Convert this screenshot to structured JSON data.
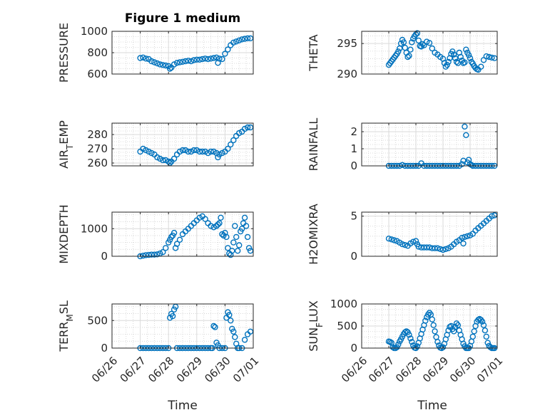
{
  "figure": {
    "title": "Figure 1 medium",
    "xlabel": "Time",
    "marker_color": "#0072BD",
    "x_tick_labels": [
      "06/26",
      "06/27",
      "06/28",
      "06/29",
      "06/30",
      "07/01"
    ]
  },
  "chart_data": [
    {
      "type": "scatter",
      "ylabel": "PRESSURE",
      "xlim": [
        "06/26",
        "07/01"
      ],
      "ylim": [
        600,
        1000
      ],
      "yticks": [
        600,
        800,
        1000
      ],
      "ytick_labels": [
        "600",
        "800",
        "1000"
      ],
      "grid": true,
      "x": [
        27.0,
        27.1,
        27.2,
        27.3,
        27.4,
        27.5,
        27.6,
        27.7,
        27.8,
        27.9,
        28.0,
        28.05,
        28.1,
        28.2,
        28.3,
        28.4,
        28.5,
        28.6,
        28.7,
        28.8,
        28.9,
        29.0,
        29.1,
        29.2,
        29.3,
        29.4,
        29.5,
        29.6,
        29.7,
        29.75,
        29.8,
        29.9,
        30.0,
        30.1,
        30.2,
        30.3,
        30.4,
        30.5,
        30.6,
        30.7,
        30.8,
        30.9
      ],
      "y": [
        750,
        755,
        745,
        740,
        720,
        710,
        700,
        690,
        685,
        680,
        675,
        650,
        660,
        690,
        705,
        710,
        715,
        720,
        725,
        720,
        730,
        735,
        735,
        740,
        745,
        740,
        745,
        750,
        755,
        705,
        745,
        740,
        790,
        830,
        870,
        895,
        905,
        915,
        925,
        930,
        935,
        935
      ]
    },
    {
      "type": "scatter",
      "ylabel": "THETA",
      "xlim": [
        "06/26",
        "07/01"
      ],
      "ylim": [
        290,
        297
      ],
      "yticks": [
        290,
        295
      ],
      "ytick_labels": [
        "290",
        "295"
      ],
      "grid": true,
      "x": [
        27.0,
        27.05,
        27.1,
        27.15,
        27.2,
        27.25,
        27.3,
        27.35,
        27.4,
        27.45,
        27.5,
        27.55,
        27.6,
        27.65,
        27.7,
        27.75,
        27.8,
        27.85,
        27.9,
        27.95,
        28.0,
        28.05,
        28.1,
        28.15,
        28.2,
        28.25,
        28.3,
        28.4,
        28.5,
        28.6,
        28.7,
        28.8,
        28.9,
        29.0,
        29.05,
        29.1,
        29.15,
        29.2,
        29.25,
        29.3,
        29.35,
        29.4,
        29.45,
        29.5,
        29.55,
        29.6,
        29.65,
        29.7,
        29.75,
        29.8,
        29.85,
        29.9,
        29.95,
        30.0,
        30.05,
        30.1,
        30.15,
        30.2,
        30.25,
        30.3,
        30.4,
        30.5,
        30.6,
        30.7,
        30.8,
        30.9
      ],
      "y": [
        291.5,
        291.8,
        292.1,
        292.4,
        292.7,
        293.0,
        293.3,
        293.7,
        294.2,
        295.0,
        295.6,
        295.2,
        294.3,
        293.5,
        292.8,
        293.0,
        294.0,
        295.2,
        295.8,
        296.2,
        296.5,
        296.7,
        295.5,
        294.6,
        294.5,
        294.9,
        294.7,
        295.3,
        295.1,
        294.2,
        293.5,
        293.2,
        292.8,
        292.5,
        291.8,
        291.2,
        291.5,
        292.0,
        292.6,
        293.3,
        293.7,
        293.2,
        292.6,
        292.0,
        291.8,
        293.5,
        292.8,
        292.2,
        291.8,
        291.9,
        294.0,
        293.5,
        293.1,
        292.6,
        292.0,
        291.7,
        291.3,
        291.0,
        290.8,
        290.7,
        291.2,
        292.3,
        292.9,
        292.8,
        292.7,
        292.6
      ]
    },
    {
      "type": "scatter",
      "ylabel": "AIR_TEMP",
      "xlim": [
        "06/26",
        "07/01"
      ],
      "ylim": [
        258,
        288
      ],
      "yticks": [
        260,
        270,
        280
      ],
      "ytick_labels": [
        "260",
        "270",
        "280"
      ],
      "grid": true,
      "x": [
        27.0,
        27.1,
        27.2,
        27.3,
        27.4,
        27.5,
        27.6,
        27.7,
        27.8,
        27.9,
        28.0,
        28.05,
        28.1,
        28.2,
        28.3,
        28.4,
        28.5,
        28.6,
        28.7,
        28.8,
        28.9,
        29.0,
        29.1,
        29.2,
        29.3,
        29.4,
        29.5,
        29.6,
        29.7,
        29.75,
        29.8,
        29.9,
        30.0,
        30.1,
        30.2,
        30.3,
        30.4,
        30.5,
        30.6,
        30.7,
        30.8,
        30.9
      ],
      "y": [
        268,
        270,
        269,
        268,
        267,
        266,
        264,
        263,
        262,
        262,
        261,
        260,
        261,
        263,
        266,
        268,
        269,
        269,
        268,
        268,
        269,
        269,
        268,
        268,
        268,
        267,
        268,
        268,
        267,
        264,
        266,
        267,
        268,
        270,
        273,
        276,
        279,
        281,
        282,
        284,
        285,
        285
      ]
    },
    {
      "type": "scatter",
      "ylabel": "RAINFALL",
      "xlim": [
        "06/26",
        "07/01"
      ],
      "ylim": [
        0,
        2.5
      ],
      "yticks": [
        0,
        1,
        2
      ],
      "ytick_labels": [
        "0",
        "1",
        "2"
      ],
      "grid": true,
      "x": [
        27.0,
        27.1,
        27.2,
        27.3,
        27.4,
        27.5,
        27.6,
        27.7,
        27.8,
        27.9,
        28.0,
        28.1,
        28.2,
        28.3,
        28.4,
        28.5,
        28.6,
        28.7,
        28.8,
        28.9,
        29.0,
        29.1,
        29.2,
        29.3,
        29.4,
        29.5,
        29.6,
        29.7,
        29.75,
        29.8,
        29.85,
        29.9,
        29.95,
        30.0,
        30.05,
        30.1,
        30.2,
        30.3,
        30.4,
        30.5,
        30.6,
        30.7,
        30.8,
        30.9
      ],
      "y": [
        0,
        0,
        0,
        0,
        0,
        0.05,
        0,
        0,
        0,
        0,
        0,
        0,
        0.15,
        0,
        0,
        0,
        0,
        0,
        0,
        0,
        0,
        0,
        0,
        0,
        0,
        0,
        0,
        0.1,
        0.3,
        2.3,
        1.8,
        0.2,
        0.35,
        0.1,
        0.05,
        0,
        0,
        0,
        0,
        0,
        0,
        0,
        0,
        0
      ]
    },
    {
      "type": "scatter",
      "ylabel": "MIXDEPTH",
      "xlim": [
        "06/26",
        "07/01"
      ],
      "ylim": [
        0,
        1600
      ],
      "yticks": [
        0,
        1000
      ],
      "ytick_labels": [
        "0",
        "1000"
      ],
      "grid": true,
      "x": [
        27.0,
        27.1,
        27.2,
        27.3,
        27.4,
        27.5,
        27.6,
        27.7,
        27.8,
        27.9,
        28.0,
        28.05,
        28.1,
        28.15,
        28.2,
        28.25,
        28.3,
        28.4,
        28.5,
        28.6,
        28.7,
        28.8,
        28.9,
        29.0,
        29.1,
        29.2,
        29.3,
        29.4,
        29.5,
        29.6,
        29.7,
        29.75,
        29.8,
        29.85,
        29.9,
        29.95,
        30.0,
        30.05,
        30.1,
        30.15,
        30.2,
        30.25,
        30.3,
        30.35,
        30.4,
        30.45,
        30.5,
        30.55,
        30.6,
        30.65,
        30.7,
        30.75,
        30.8,
        30.85,
        30.9
      ],
      "y": [
        0,
        20,
        40,
        50,
        60,
        60,
        70,
        100,
        150,
        300,
        500,
        600,
        700,
        750,
        850,
        300,
        450,
        600,
        800,
        900,
        1000,
        1100,
        1200,
        1300,
        1400,
        1450,
        1350,
        1200,
        1100,
        1050,
        1100,
        1150,
        1200,
        1400,
        800,
        750,
        850,
        700,
        300,
        100,
        50,
        200,
        500,
        1100,
        700,
        200,
        400,
        900,
        1000,
        1200,
        1400,
        1100,
        700,
        300,
        200
      ]
    },
    {
      "type": "scatter",
      "ylabel": "H2OMIXRA",
      "xlim": [
        "06/26",
        "07/01"
      ],
      "ylim": [
        0,
        5.5
      ],
      "yticks": [
        0,
        5
      ],
      "ytick_labels": [
        "0",
        "5"
      ],
      "grid": true,
      "x": [
        27.0,
        27.1,
        27.2,
        27.3,
        27.4,
        27.5,
        27.6,
        27.7,
        27.8,
        27.9,
        28.0,
        28.05,
        28.1,
        28.2,
        28.3,
        28.4,
        28.5,
        28.6,
        28.7,
        28.8,
        28.9,
        29.0,
        29.1,
        29.2,
        29.3,
        29.4,
        29.5,
        29.6,
        29.7,
        29.75,
        29.8,
        29.9,
        30.0,
        30.1,
        30.2,
        30.3,
        30.4,
        30.5,
        30.6,
        30.7,
        30.8,
        30.9
      ],
      "y": [
        2.2,
        2.1,
        2.0,
        1.9,
        1.7,
        1.5,
        1.4,
        1.3,
        1.6,
        1.8,
        1.9,
        1.5,
        1.2,
        1.1,
        1.1,
        1.1,
        1.1,
        1.0,
        1.0,
        1.0,
        0.9,
        0.8,
        0.9,
        1.0,
        1.2,
        1.5,
        1.8,
        2.0,
        2.3,
        1.6,
        2.4,
        2.5,
        2.6,
        2.8,
        3.2,
        3.5,
        3.8,
        4.1,
        4.4,
        4.7,
        5.0,
        5.1
      ]
    },
    {
      "type": "scatter",
      "ylabel": "TERR_MSL",
      "xlim": [
        "06/26",
        "07/01"
      ],
      "ylim": [
        0,
        800
      ],
      "yticks": [
        0,
        500
      ],
      "ytick_labels": [
        "0",
        "500"
      ],
      "grid": true,
      "x": [
        27.0,
        27.1,
        27.2,
        27.3,
        27.4,
        27.5,
        27.6,
        27.7,
        27.8,
        27.9,
        28.0,
        28.05,
        28.1,
        28.15,
        28.2,
        28.25,
        28.3,
        28.4,
        28.5,
        28.6,
        28.7,
        28.8,
        28.9,
        29.0,
        29.1,
        29.2,
        29.3,
        29.4,
        29.5,
        29.55,
        29.6,
        29.65,
        29.7,
        29.75,
        29.8,
        29.9,
        30.0,
        30.05,
        30.1,
        30.15,
        30.2,
        30.25,
        30.3,
        30.35,
        30.4,
        30.45,
        30.5,
        30.6,
        30.7,
        30.8,
        30.9
      ],
      "y": [
        0,
        0,
        0,
        0,
        0,
        0,
        0,
        0,
        0,
        0,
        0,
        550,
        620,
        580,
        700,
        750,
        0,
        0,
        0,
        0,
        0,
        0,
        0,
        0,
        0,
        0,
        0,
        0,
        0,
        0,
        400,
        380,
        100,
        50,
        0,
        0,
        0,
        550,
        650,
        600,
        500,
        350,
        300,
        200,
        80,
        0,
        0,
        0,
        150,
        250,
        300
      ]
    },
    {
      "type": "scatter",
      "ylabel": "SUN_FLUX",
      "xlim": [
        "06/26",
        "07/01"
      ],
      "ylim": [
        0,
        1000
      ],
      "yticks": [
        0,
        500,
        1000
      ],
      "ytick_labels": [
        "0",
        "500",
        "1000"
      ],
      "grid": true,
      "x": [
        27.0,
        27.05,
        27.1,
        27.15,
        27.2,
        27.25,
        27.3,
        27.35,
        27.4,
        27.45,
        27.5,
        27.55,
        27.6,
        27.65,
        27.7,
        27.75,
        27.8,
        27.85,
        27.9,
        27.95,
        28.0,
        28.05,
        28.1,
        28.15,
        28.2,
        28.25,
        28.3,
        28.35,
        28.4,
        28.45,
        28.5,
        28.55,
        28.6,
        28.65,
        28.7,
        28.75,
        28.8,
        28.85,
        28.9,
        28.95,
        29.0,
        29.05,
        29.1,
        29.15,
        29.2,
        29.25,
        29.3,
        29.35,
        29.4,
        29.45,
        29.5,
        29.55,
        29.6,
        29.65,
        29.7,
        29.75,
        29.8,
        29.85,
        29.9,
        29.95,
        30.0,
        30.05,
        30.1,
        30.15,
        30.2,
        30.25,
        30.3,
        30.35,
        30.4,
        30.45,
        30.5,
        30.55,
        30.6,
        30.65,
        30.7,
        30.75,
        30.8,
        30.85,
        30.9
      ],
      "y": [
        150,
        140,
        120,
        20,
        0,
        0,
        20,
        80,
        150,
        200,
        260,
        320,
        360,
        380,
        360,
        300,
        220,
        140,
        60,
        10,
        0,
        40,
        120,
        220,
        320,
        420,
        520,
        620,
        700,
        760,
        800,
        760,
        650,
        520,
        380,
        250,
        140,
        60,
        10,
        0,
        20,
        100,
        200,
        300,
        400,
        480,
        500,
        430,
        380,
        480,
        560,
        520,
        400,
        300,
        200,
        100,
        40,
        0,
        0,
        0,
        50,
        150,
        260,
        380,
        500,
        600,
        640,
        660,
        640,
        600,
        520,
        400,
        260,
        120,
        50,
        20,
        0,
        0,
        0
      ]
    }
  ]
}
